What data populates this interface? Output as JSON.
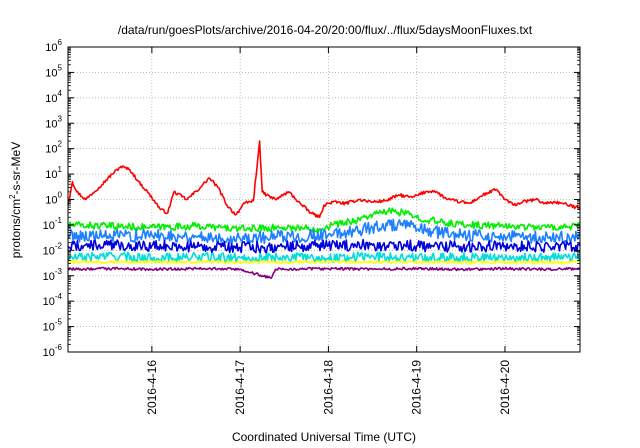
{
  "chart_data": {
    "type": "line",
    "title": "/data/run/goesPlots/archive/2016-04-20/20:00/flux/../flux/5daysMoonFluxes.txt",
    "xlabel": "Coordinated Universal Time (UTC)",
    "ylabel": "protons/cm2-s-sr-MeV",
    "y_scale": "log",
    "ylim_exponents": [
      -6,
      6
    ],
    "xlim_days": [
      15.05,
      20.85
    ],
    "x_ticks": [
      {
        "day": 16,
        "label": "2016-4-16"
      },
      {
        "day": 17,
        "label": "2016-4-17"
      },
      {
        "day": 18,
        "label": "2016-4-18"
      },
      {
        "day": 19,
        "label": "2016-4-19"
      },
      {
        "day": 20,
        "label": "2016-4-20"
      }
    ],
    "y_tick_exponents": [
      -6,
      -5,
      -4,
      -3,
      -2,
      -1,
      0,
      1,
      2,
      3,
      4,
      5,
      6
    ],
    "grid": true,
    "series": [
      {
        "color": "#ff0000",
        "points": [
          [
            15.05,
            0.6
          ],
          [
            15.1,
            5
          ],
          [
            15.15,
            2
          ],
          [
            15.25,
            1
          ],
          [
            15.4,
            3
          ],
          [
            15.55,
            10
          ],
          [
            15.65,
            20
          ],
          [
            15.75,
            15
          ],
          [
            15.85,
            5
          ],
          [
            15.95,
            2
          ],
          [
            16.05,
            0.7
          ],
          [
            16.1,
            0.4
          ],
          [
            16.18,
            0.3
          ],
          [
            16.25,
            2
          ],
          [
            16.4,
            1
          ],
          [
            16.55,
            3
          ],
          [
            16.65,
            7
          ],
          [
            16.75,
            3
          ],
          [
            16.85,
            0.6
          ],
          [
            16.95,
            0.25
          ],
          [
            17.05,
            0.7
          ],
          [
            17.15,
            0.9
          ],
          [
            17.2,
            40
          ],
          [
            17.22,
            200
          ],
          [
            17.25,
            2
          ],
          [
            17.3,
            1.5
          ],
          [
            17.4,
            1
          ],
          [
            17.55,
            2
          ],
          [
            17.7,
            0.6
          ],
          [
            17.8,
            0.3
          ],
          [
            17.9,
            0.2
          ],
          [
            17.95,
            0.6
          ],
          [
            18.05,
            0.8
          ],
          [
            18.2,
            0.7
          ],
          [
            18.35,
            1
          ],
          [
            18.5,
            0.8
          ],
          [
            18.65,
            0.9
          ],
          [
            18.8,
            1.5
          ],
          [
            18.95,
            1.2
          ],
          [
            19.1,
            2
          ],
          [
            19.2,
            2.2
          ],
          [
            19.35,
            1
          ],
          [
            19.5,
            0.8
          ],
          [
            19.6,
            0.7
          ],
          [
            19.75,
            1.5
          ],
          [
            19.9,
            2.5
          ],
          [
            20.0,
            1
          ],
          [
            20.1,
            0.6
          ],
          [
            20.2,
            0.8
          ],
          [
            20.35,
            1
          ],
          [
            20.45,
            0.7
          ],
          [
            20.55,
            0.8
          ],
          [
            20.65,
            0.7
          ],
          [
            20.8,
            0.5
          ],
          [
            20.85,
            0.5
          ]
        ]
      },
      {
        "color": "#00ee00",
        "points": [
          [
            15.05,
            0.1
          ],
          [
            15.5,
            0.09
          ],
          [
            16.0,
            0.08
          ],
          [
            16.5,
            0.09
          ],
          [
            17.0,
            0.07
          ],
          [
            17.5,
            0.08
          ],
          [
            17.9,
            0.07
          ],
          [
            18.05,
            0.1
          ],
          [
            18.3,
            0.15
          ],
          [
            18.5,
            0.25
          ],
          [
            18.7,
            0.35
          ],
          [
            18.85,
            0.3
          ],
          [
            19.0,
            0.2
          ],
          [
            19.3,
            0.12
          ],
          [
            19.6,
            0.1
          ],
          [
            20.0,
            0.09
          ],
          [
            20.5,
            0.08
          ],
          [
            20.85,
            0.09
          ]
        ]
      },
      {
        "color": "#00dddd",
        "points": [
          [
            15.05,
            0.005
          ],
          [
            15.5,
            0.006
          ],
          [
            16.0,
            0.005
          ],
          [
            16.5,
            0.0055
          ],
          [
            17.0,
            0.005
          ],
          [
            17.5,
            0.0055
          ],
          [
            18.0,
            0.005
          ],
          [
            18.5,
            0.006
          ],
          [
            19.0,
            0.005
          ],
          [
            19.5,
            0.0055
          ],
          [
            20.0,
            0.005
          ],
          [
            20.5,
            0.0055
          ],
          [
            20.85,
            0.005
          ]
        ]
      },
      {
        "color": "#1e7fff",
        "points": [
          [
            15.05,
            0.04
          ],
          [
            15.5,
            0.035
          ],
          [
            16.0,
            0.04
          ],
          [
            16.5,
            0.035
          ],
          [
            17.0,
            0.03
          ],
          [
            17.5,
            0.035
          ],
          [
            18.0,
            0.04
          ],
          [
            18.3,
            0.06
          ],
          [
            18.5,
            0.08
          ],
          [
            18.7,
            0.1
          ],
          [
            18.9,
            0.09
          ],
          [
            19.1,
            0.06
          ],
          [
            19.5,
            0.04
          ],
          [
            20.0,
            0.035
          ],
          [
            20.5,
            0.03
          ],
          [
            20.85,
            0.035
          ]
        ]
      },
      {
        "color": "#0000dd",
        "points": [
          [
            15.05,
            0.015
          ],
          [
            15.5,
            0.016
          ],
          [
            16.0,
            0.015
          ],
          [
            16.5,
            0.014
          ],
          [
            17.0,
            0.013
          ],
          [
            17.5,
            0.014
          ],
          [
            18.0,
            0.015
          ],
          [
            18.5,
            0.016
          ],
          [
            19.0,
            0.015
          ],
          [
            19.5,
            0.014
          ],
          [
            20.0,
            0.015
          ],
          [
            20.5,
            0.014
          ],
          [
            20.85,
            0.015
          ]
        ]
      },
      {
        "color": "#ffff00",
        "points": [
          [
            15.05,
            0.0035
          ],
          [
            16.0,
            0.0035
          ],
          [
            17.0,
            0.0034
          ],
          [
            18.0,
            0.0035
          ],
          [
            19.0,
            0.0035
          ],
          [
            20.0,
            0.0034
          ],
          [
            20.85,
            0.0035
          ]
        ]
      },
      {
        "color": "#800080",
        "points": [
          [
            15.05,
            0.0018
          ],
          [
            15.5,
            0.0019
          ],
          [
            16.0,
            0.0018
          ],
          [
            16.5,
            0.0019
          ],
          [
            17.0,
            0.0018
          ],
          [
            17.35,
            0.0008
          ],
          [
            17.4,
            0.0018
          ],
          [
            18.0,
            0.0019
          ],
          [
            18.5,
            0.0018
          ],
          [
            19.0,
            0.0019
          ],
          [
            19.5,
            0.0018
          ],
          [
            20.0,
            0.0019
          ],
          [
            20.5,
            0.0018
          ],
          [
            20.85,
            0.0019
          ]
        ]
      }
    ]
  }
}
